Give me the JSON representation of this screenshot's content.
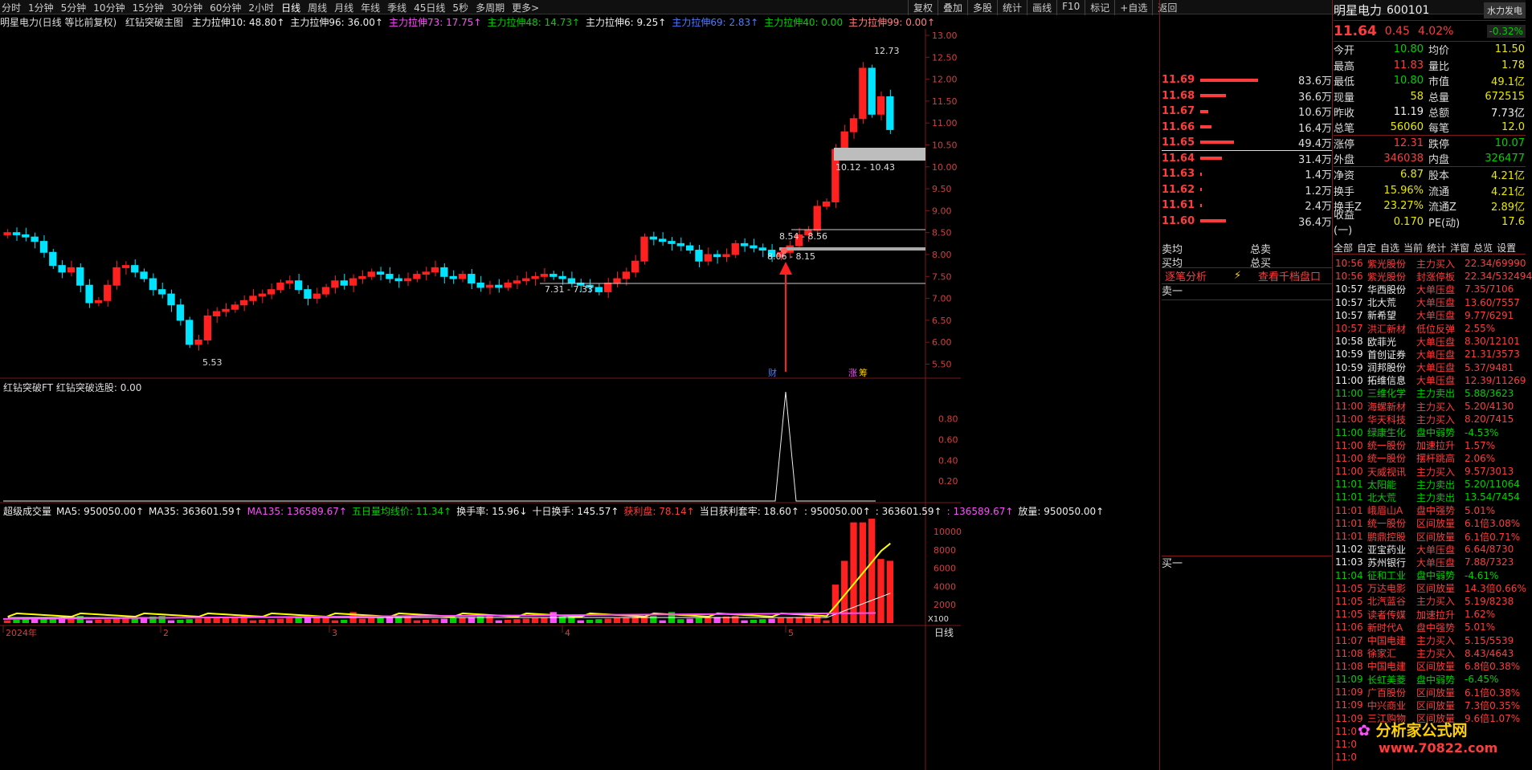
{
  "periods": [
    "分时",
    "1分钟",
    "5分钟",
    "10分钟",
    "15分钟",
    "30分钟",
    "60分钟",
    "2小时",
    "日线",
    "周线",
    "月线",
    "年线",
    "季线",
    "45日线",
    "5秒",
    "多周期",
    "更多>"
  ],
  "active_period": "日线",
  "tools": [
    "复权",
    "叠加",
    "多股",
    "统计",
    "画线",
    "F10",
    "标记",
    "+自选",
    "返回"
  ],
  "main_title": {
    "stock": "明星电力(日线 等比前复权)",
    "indicator": "红钻突破主图",
    "items": [
      {
        "text": "主力拉伸10: 48.80↑",
        "color": "#eeeeee"
      },
      {
        "text": "主力拉伸96: 36.00↑",
        "color": "#eeeeee"
      },
      {
        "text": "主力拉伸73: 17.75↑",
        "color": "#ff4dff"
      },
      {
        "text": "主力拉伸48: 14.73↑",
        "color": "#00d000"
      },
      {
        "text": "主力拉伸6: 9.25↑",
        "color": "#eeeeee"
      },
      {
        "text": "主力拉伸69: 2.83↑",
        "color": "#4d7bff"
      },
      {
        "text": "主力拉伸40: 0.00",
        "color": "#00d000"
      },
      {
        "text": "主力拉伸99: 0.00↑",
        "color": "#ff8080"
      }
    ]
  },
  "price_axis": [
    "13.00",
    "12.50",
    "12.00",
    "11.50",
    "11.00",
    "10.50",
    "10.00",
    "9.50",
    "9.00",
    "8.50",
    "8.00",
    "7.50",
    "7.00",
    "6.50",
    "6.00",
    "5.50"
  ],
  "annotations": {
    "high": "12.73",
    "low": "5.53",
    "zone1": "10.12 - 10.43",
    "zone2": "8.54 - 8.56",
    "zone3": "8.06 - 8.15",
    "zone4": "7.31 - 7.33",
    "tag_cai": "财",
    "tag_zhang": "涨",
    "tag_chou": "筹"
  },
  "sub1": {
    "title": "红钻突破FT 红钻突破选股: 0.00",
    "axis": [
      "0.80",
      "0.60",
      "0.40",
      "0.20"
    ]
  },
  "sub2": {
    "items": [
      {
        "text": "超级成交量",
        "color": "#eeeeee"
      },
      {
        "text": "MA5: 950050.00↑",
        "color": "#eeeeee"
      },
      {
        "text": "MA35: 363601.59↑",
        "color": "#eeeeee"
      },
      {
        "text": "MA135: 136589.67↑",
        "color": "#ff4dff"
      },
      {
        "text": "五日量均线价: 11.34↑",
        "color": "#00d000"
      },
      {
        "text": "换手率: 15.96↓",
        "color": "#eeeeee"
      },
      {
        "text": "十日换手: 145.57↑",
        "color": "#eeeeee"
      },
      {
        "text": "获利盘: 78.14↑",
        "color": "#ff3c3c"
      },
      {
        "text": "当日获利套牢: 18.60↑",
        "color": "#eeeeee"
      },
      {
        "text": ": 950050.00↑",
        "color": "#eeeeee"
      },
      {
        "text": ": 363601.59↑",
        "color": "#eeeeee"
      },
      {
        "text": ": 136589.67↑",
        "color": "#ff4dff"
      },
      {
        "text": "放量: 950050.00↑",
        "color": "#eeeeee"
      }
    ],
    "axis": [
      "10000",
      "8000",
      "6000",
      "4000",
      "2000"
    ],
    "unit": "X100"
  },
  "xaxis": {
    "labels": [
      "2024年",
      "2",
      "3",
      "4",
      "5"
    ],
    "right": "日线"
  },
  "quote": {
    "name": "明星电力",
    "code": "600101",
    "badge": "水力发电",
    "price": "11.64",
    "chg": "0.45",
    "pct": "4.02%",
    "pct2": "-0.32%",
    "rows": [
      [
        "今开",
        "10.80",
        "均价",
        "11.50"
      ],
      [
        "最高",
        "11.83",
        "量比",
        "1.78"
      ],
      [
        "最低",
        "10.80",
        "市值",
        "49.1亿"
      ],
      [
        "现量",
        "58",
        "总量",
        "672515"
      ],
      [
        "昨收",
        "11.19",
        "总额",
        "7.73亿"
      ],
      [
        "总笔",
        "56060",
        "每笔",
        "12.0"
      ],
      [
        "涨停",
        "12.31",
        "跌停",
        "10.07"
      ],
      [
        "外盘",
        "346038",
        "内盘",
        "326477"
      ],
      [
        "净资",
        "6.87",
        "股本",
        "4.21亿"
      ],
      [
        "换手",
        "15.96%",
        "流通",
        "4.21亿"
      ],
      [
        "换手Z",
        "23.27%",
        "流通Z",
        "2.89亿"
      ],
      [
        "收益(一)",
        "0.170",
        "PE(动)",
        "17.6"
      ]
    ]
  },
  "orderbook": [
    [
      "11.69",
      90,
      "83.6万"
    ],
    [
      "11.68",
      40,
      "36.6万"
    ],
    [
      "11.67",
      12,
      "10.6万"
    ],
    [
      "11.66",
      18,
      "16.4万"
    ],
    [
      "11.65",
      52,
      "49.4万"
    ],
    [
      "11.64",
      34,
      "31.4万"
    ],
    [
      "11.63",
      2,
      "1.4万"
    ],
    [
      "11.62",
      2,
      "1.2万"
    ],
    [
      "11.61",
      2,
      "2.4万"
    ],
    [
      "11.60",
      40,
      "36.4万"
    ]
  ],
  "ob_labels": {
    "sell_avg": "卖均",
    "buy_avg": "买均",
    "total_sell": "总卖",
    "total_buy": "总买",
    "trade_analysis": "逐笔分析",
    "view_depth": "查看千档盘口",
    "sell1": "卖一",
    "buy1": "买一"
  },
  "tabs": [
    "全部",
    "自定",
    "自选",
    "当前",
    "统计",
    "",
    "洋窗",
    "总览",
    "设置"
  ],
  "ticks": [
    [
      "10:56",
      "紫光股份",
      "主力买入",
      "22.34/69990"
    ],
    [
      "10:56",
      "紫光股份",
      "封涨停板",
      "22.34/532494"
    ],
    [
      "10:57",
      "华西股份",
      "大单压盘",
      "7.35/7106"
    ],
    [
      "10:57",
      "北大荒",
      "大单压盘",
      "13.60/7557"
    ],
    [
      "10:57",
      "新希望",
      "大单压盘",
      "9.77/6291"
    ],
    [
      "10:57",
      "洪汇新材",
      "低位反弹",
      "2.55%"
    ],
    [
      "10:58",
      "欧菲光",
      "大单压盘",
      "8.30/12101"
    ],
    [
      "10:59",
      "首创证券",
      "大单压盘",
      "21.31/3573"
    ],
    [
      "10:59",
      "润邦股份",
      "大单压盘",
      "5.37/9481"
    ],
    [
      "11:00",
      "拓维信息",
      "大单压盘",
      "12.39/11269"
    ],
    [
      "11:00",
      "三维化学",
      "主力卖出",
      "5.88/3623"
    ],
    [
      "11:00",
      "海螺新材",
      "主力买入",
      "5.20/4130"
    ],
    [
      "11:00",
      "华天科技",
      "主力买入",
      "8.20/7415"
    ],
    [
      "11:00",
      "绿康生化",
      "盘中弱势",
      "-4.53%"
    ],
    [
      "11:00",
      "统一股份",
      "加速拉升",
      "1.57%"
    ],
    [
      "11:00",
      "统一股份",
      "摆杆跳高",
      "2.06%"
    ],
    [
      "11:00",
      "天威视讯",
      "主力买入",
      "9.57/3013"
    ],
    [
      "11:01",
      "太阳能",
      "主力卖出",
      "5.20/11064"
    ],
    [
      "11:01",
      "北大荒",
      "主力卖出",
      "13.54/7454"
    ],
    [
      "11:01",
      "峨眉山A",
      "盘中强势",
      "5.01%"
    ],
    [
      "11:01",
      "统一股份",
      "区间放量",
      "6.1倍3.08%"
    ],
    [
      "11:01",
      "鹏鼎控股",
      "区间放量",
      "6.1倍0.71%"
    ],
    [
      "11:02",
      "亚宝药业",
      "大单压盘",
      "6.64/8730"
    ],
    [
      "11:03",
      "苏州银行",
      "大单压盘",
      "7.88/7323"
    ],
    [
      "11:04",
      "征和工业",
      "盘中弱势",
      "-4.61%"
    ],
    [
      "11:05",
      "万达电影",
      "区间放量",
      "14.3倍0.66%"
    ],
    [
      "11:05",
      "北汽蓝谷",
      "主力买入",
      "5.19/8238"
    ],
    [
      "11:05",
      "读者传媒",
      "加速拉升",
      "1.62%"
    ],
    [
      "11:06",
      "新时代A",
      "盘中强势",
      "5.01%"
    ],
    [
      "11:07",
      "中国电建",
      "主力买入",
      "5.15/5539"
    ],
    [
      "11:08",
      "徐家汇",
      "主力买入",
      "8.43/4643"
    ],
    [
      "11:08",
      "中国电建",
      "区间放量",
      "6.8倍0.38%"
    ],
    [
      "11:09",
      "长虹美菱",
      "盘中弱势",
      "-6.45%"
    ],
    [
      "11:09",
      "广百股份",
      "区间放量",
      "6.1倍0.38%"
    ],
    [
      "11:09",
      "中兴商业",
      "区间放量",
      "7.3倍0.35%"
    ],
    [
      "11:09",
      "三江购物",
      "区间放量",
      "9.6倍1.07%"
    ],
    [
      "11:0",
      "",
      "",
      ""
    ],
    [
      "11:0",
      "",
      "",
      ""
    ],
    [
      "11:0",
      "",
      "",
      ""
    ]
  ],
  "watermark": "分析家公式网",
  "watermark2": "www.70822.com"
}
